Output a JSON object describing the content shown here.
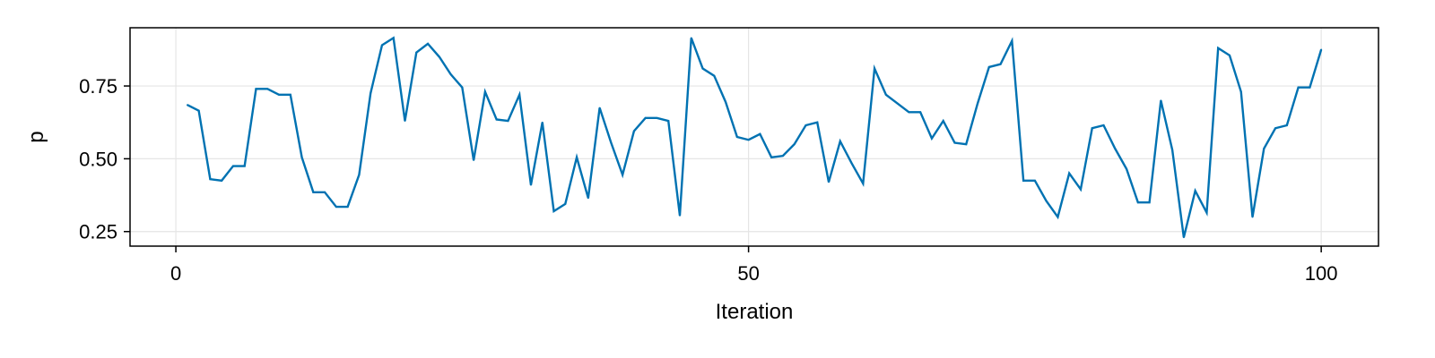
{
  "chart_data": {
    "type": "line",
    "title": "",
    "xlabel": "Iteration",
    "ylabel": "p",
    "xlim": [
      -4,
      105
    ],
    "ylim": [
      0.2,
      0.95
    ],
    "xticks": [
      0,
      50,
      100
    ],
    "xtick_labels": [
      "0",
      "50",
      "100"
    ],
    "yticks": [
      0.25,
      0.5,
      0.75
    ],
    "ytick_labels": [
      "0.25",
      "0.50",
      "0.75"
    ],
    "grid": true,
    "legend": "none",
    "series_color": "#0072B2",
    "series": [
      {
        "x": [
          1,
          2,
          3,
          4,
          5,
          6,
          7,
          8,
          9,
          10,
          11,
          12,
          13,
          14,
          15,
          16,
          17,
          18,
          19,
          20,
          21,
          22,
          23,
          24,
          25,
          26,
          27,
          28,
          29,
          30,
          31,
          32,
          33,
          34,
          35,
          36,
          37,
          38,
          39,
          40,
          41,
          42,
          43,
          44,
          45,
          46,
          47,
          48,
          49,
          50,
          51,
          52,
          53,
          54,
          55,
          56,
          57,
          58,
          59,
          60,
          61,
          62,
          63,
          64,
          65,
          66,
          67,
          68,
          69,
          70,
          71,
          72,
          73,
          74,
          75,
          76,
          77,
          78,
          79,
          80,
          81,
          82,
          83,
          84,
          85,
          86,
          87,
          88,
          89,
          90,
          91,
          92,
          93,
          94,
          95,
          96,
          97,
          98,
          99,
          100
        ],
        "values": [
          0.685,
          0.665,
          0.43,
          0.425,
          0.475,
          0.475,
          0.74,
          0.74,
          0.72,
          0.72,
          0.505,
          0.385,
          0.385,
          0.335,
          0.335,
          0.445,
          0.725,
          0.89,
          0.915,
          0.63,
          0.865,
          0.895,
          0.85,
          0.79,
          0.745,
          0.495,
          0.73,
          0.635,
          0.63,
          0.72,
          0.41,
          0.625,
          0.32,
          0.345,
          0.505,
          0.365,
          0.675,
          0.555,
          0.445,
          0.595,
          0.64,
          0.64,
          0.63,
          0.305,
          0.915,
          0.81,
          0.785,
          0.695,
          0.575,
          0.565,
          0.585,
          0.505,
          0.51,
          0.55,
          0.615,
          0.625,
          0.42,
          0.56,
          0.485,
          0.415,
          0.81,
          0.72,
          0.69,
          0.66,
          0.66,
          0.57,
          0.63,
          0.555,
          0.55,
          0.69,
          0.815,
          0.825,
          0.905,
          0.425,
          0.425,
          0.355,
          0.3,
          0.45,
          0.395,
          0.605,
          0.615,
          0.535,
          0.465,
          0.35,
          0.35,
          0.7,
          0.53,
          0.23,
          0.39,
          0.315,
          0.88,
          0.855,
          0.73,
          0.3,
          0.535,
          0.605,
          0.615,
          0.745,
          0.745,
          0.875
        ]
      }
    ]
  }
}
